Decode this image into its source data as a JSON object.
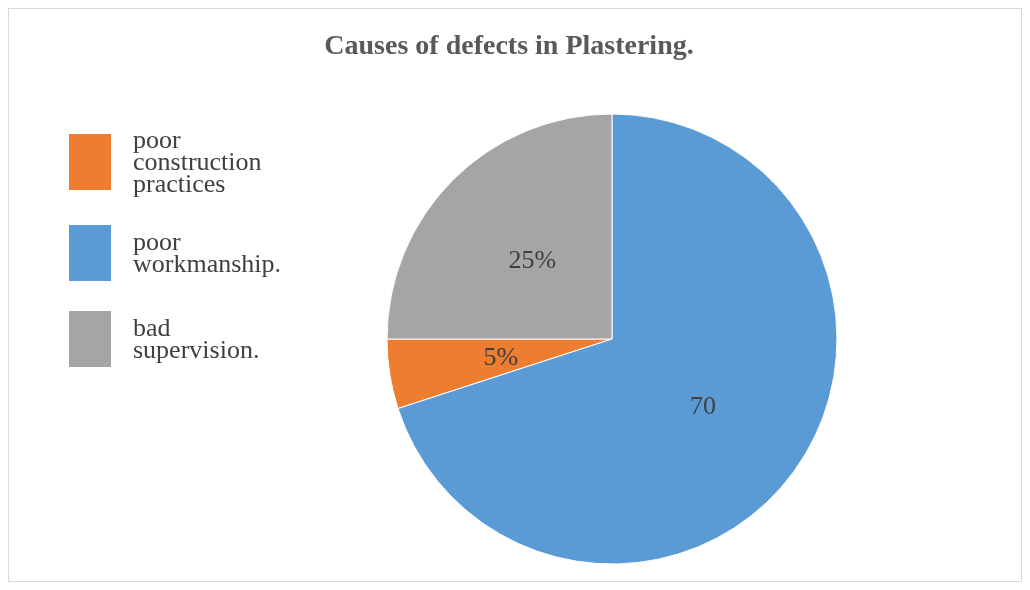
{
  "chart_data": {
    "type": "pie",
    "title": "Causes of defects in Plastering.",
    "categories": [
      "poor construction practices",
      "poor workmanship.",
      "bad supervision."
    ],
    "values": [
      5,
      70,
      25
    ],
    "colors": [
      "#ed7d31",
      "#5b9bd5",
      "#a5a5a5"
    ],
    "value_labels": [
      "5%",
      "70",
      "25%"
    ],
    "legend": "left"
  }
}
